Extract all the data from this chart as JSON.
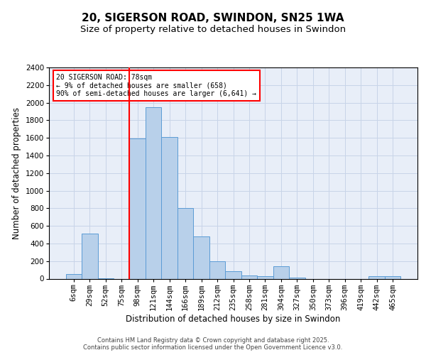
{
  "title1": "20, SIGERSON ROAD, SWINDON, SN25 1WA",
  "title2": "Size of property relative to detached houses in Swindon",
  "xlabel": "Distribution of detached houses by size in Swindon",
  "ylabel": "Number of detached properties",
  "categories": [
    "6sqm",
    "29sqm",
    "52sqm",
    "75sqm",
    "98sqm",
    "121sqm",
    "144sqm",
    "166sqm",
    "189sqm",
    "212sqm",
    "235sqm",
    "258sqm",
    "281sqm",
    "304sqm",
    "327sqm",
    "350sqm",
    "373sqm",
    "396sqm",
    "419sqm",
    "442sqm",
    "465sqm"
  ],
  "values": [
    55,
    510,
    5,
    0,
    1590,
    1950,
    1610,
    800,
    480,
    195,
    88,
    40,
    32,
    145,
    12,
    0,
    0,
    0,
    0,
    30,
    28
  ],
  "bar_color": "#b8d0ea",
  "bar_edge_color": "#5b9bd5",
  "vline_color": "red",
  "vline_x_index": 4,
  "annotation_text": "20 SIGERSON ROAD: 78sqm\n← 9% of detached houses are smaller (658)\n90% of semi-detached houses are larger (6,641) →",
  "annotation_box_color": "white",
  "annotation_box_edge": "red",
  "ylim": [
    0,
    2400
  ],
  "yticks": [
    0,
    200,
    400,
    600,
    800,
    1000,
    1200,
    1400,
    1600,
    1800,
    2000,
    2200,
    2400
  ],
  "grid_color": "#c8d4e8",
  "background_color": "#e8eef8",
  "footer_line1": "Contains HM Land Registry data © Crown copyright and database right 2025.",
  "footer_line2": "Contains public sector information licensed under the Open Government Licence v3.0.",
  "title1_fontsize": 11,
  "title2_fontsize": 9.5,
  "tick_fontsize": 7.5,
  "ylabel_fontsize": 8.5,
  "xlabel_fontsize": 8.5,
  "footer_fontsize": 6,
  "annot_fontsize": 7
}
